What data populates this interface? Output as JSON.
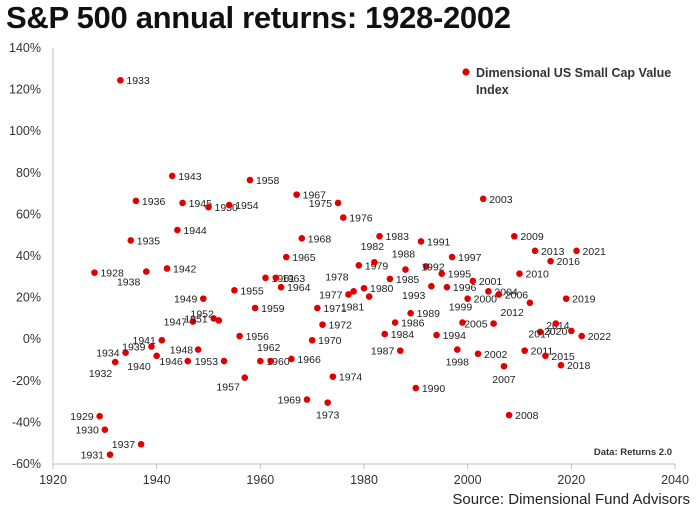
{
  "title": "S&P 500 annual returns: 1928-2002",
  "source": "Source: Dimensional Fund Advisors",
  "chart_data": {
    "type": "scatter",
    "title": "S&P 500 annual returns: 1928-2002",
    "xlim": [
      1920,
      2040
    ],
    "ylim": [
      -60,
      140
    ],
    "x_ticks": [
      "1920",
      "1940",
      "1960",
      "1980",
      "2000",
      "2020",
      "2040"
    ],
    "y_ticks": [
      "-60%",
      "-40%",
      "-20%",
      "0%",
      "20%",
      "40%",
      "60%",
      "80%",
      "100%",
      "120%",
      "140%"
    ],
    "grid": false,
    "legend": "top-right",
    "series": [
      {
        "name": "Dimensional US Small Cap Value Index",
        "color": "#e00000",
        "points": [
          {
            "label": "1928",
            "x": 1928,
            "y": 32
          },
          {
            "label": "1929",
            "x": 1929,
            "y": -37
          },
          {
            "label": "1930",
            "x": 1930,
            "y": -43.5
          },
          {
            "label": "1931",
            "x": 1931,
            "y": -55.5
          },
          {
            "label": "1932",
            "x": 1932,
            "y": -11
          },
          {
            "label": "1933",
            "x": 1933,
            "y": 124.5
          },
          {
            "label": "1934",
            "x": 1934,
            "y": -6.5
          },
          {
            "label": "1935",
            "x": 1935,
            "y": 47.5
          },
          {
            "label": "1936",
            "x": 1936,
            "y": 66.5
          },
          {
            "label": "1937",
            "x": 1937,
            "y": -50.5
          },
          {
            "label": "1938",
            "x": 1938,
            "y": 32.5
          },
          {
            "label": "1939",
            "x": 1939,
            "y": -3.5
          },
          {
            "label": "1940",
            "x": 1940,
            "y": -8
          },
          {
            "label": "1941",
            "x": 1941,
            "y": -0.5
          },
          {
            "label": "1942",
            "x": 1942,
            "y": 34
          },
          {
            "label": "1943",
            "x": 1943,
            "y": 78.5
          },
          {
            "label": "1944",
            "x": 1944,
            "y": 52.5
          },
          {
            "label": "1945",
            "x": 1945,
            "y": 65.5
          },
          {
            "label": "1946",
            "x": 1946,
            "y": -10.5
          },
          {
            "label": "1947",
            "x": 1947,
            "y": 8.5
          },
          {
            "label": "1948",
            "x": 1948,
            "y": -5
          },
          {
            "label": "1949",
            "x": 1949,
            "y": 19.5
          },
          {
            "label": "1950",
            "x": 1950,
            "y": 63.5
          },
          {
            "label": "1951",
            "x": 1951,
            "y": 10
          },
          {
            "label": "1952",
            "x": 1952,
            "y": 9
          },
          {
            "label": "1953",
            "x": 1953,
            "y": -10.5
          },
          {
            "label": "1954",
            "x": 1954,
            "y": 64.5
          },
          {
            "label": "1955",
            "x": 1955,
            "y": 23.5
          },
          {
            "label": "1956",
            "x": 1956,
            "y": 1.5
          },
          {
            "label": "1957",
            "x": 1957,
            "y": -18.5
          },
          {
            "label": "1958",
            "x": 1958,
            "y": 76.5
          },
          {
            "label": "1959",
            "x": 1959,
            "y": 15
          },
          {
            "label": "1960",
            "x": 1960,
            "y": -10.5
          },
          {
            "label": "1961",
            "x": 1961,
            "y": 29.5
          },
          {
            "label": "1962",
            "x": 1962,
            "y": -10.5
          },
          {
            "label": "1963",
            "x": 1963,
            "y": 29.5
          },
          {
            "label": "1964",
            "x": 1964,
            "y": 25
          },
          {
            "label": "1965",
            "x": 1965,
            "y": 39.5
          },
          {
            "label": "1966",
            "x": 1966,
            "y": -9.5
          },
          {
            "label": "1967",
            "x": 1967,
            "y": 69.5
          },
          {
            "label": "1968",
            "x": 1968,
            "y": 48.5
          },
          {
            "label": "1969",
            "x": 1969,
            "y": -29
          },
          {
            "label": "1970",
            "x": 1970,
            "y": -0.5
          },
          {
            "label": "1971",
            "x": 1971,
            "y": 15
          },
          {
            "label": "1972",
            "x": 1972,
            "y": 7
          },
          {
            "label": "1973",
            "x": 1973,
            "y": -30.5
          },
          {
            "label": "1974",
            "x": 1974,
            "y": -18
          },
          {
            "label": "1975",
            "x": 1975,
            "y": 65.5
          },
          {
            "label": "1976",
            "x": 1976,
            "y": 58.5
          },
          {
            "label": "1977",
            "x": 1977,
            "y": 21.5
          },
          {
            "label": "1978",
            "x": 1978,
            "y": 23
          },
          {
            "label": "1979",
            "x": 1979,
            "y": 35.5
          },
          {
            "label": "1980",
            "x": 1980,
            "y": 24.5
          },
          {
            "label": "1981",
            "x": 1981,
            "y": 20.5
          },
          {
            "label": "1982",
            "x": 1982,
            "y": 37
          },
          {
            "label": "1983",
            "x": 1983,
            "y": 49.5
          },
          {
            "label": "1984",
            "x": 1984,
            "y": 2.5
          },
          {
            "label": "1985",
            "x": 1985,
            "y": 29
          },
          {
            "label": "1986",
            "x": 1986,
            "y": 8
          },
          {
            "label": "1987",
            "x": 1987,
            "y": -5.5
          },
          {
            "label": "1988",
            "x": 1988,
            "y": 33.5
          },
          {
            "label": "1989",
            "x": 1989,
            "y": 12.5
          },
          {
            "label": "1990",
            "x": 1990,
            "y": -23.5
          },
          {
            "label": "1991",
            "x": 1991,
            "y": 47
          },
          {
            "label": "1992",
            "x": 1992,
            "y": 35
          },
          {
            "label": "1993",
            "x": 1993,
            "y": 25.5
          },
          {
            "label": "1994",
            "x": 1994,
            "y": 2
          },
          {
            "label": "1995",
            "x": 1995,
            "y": 31.5
          },
          {
            "label": "1996",
            "x": 1996,
            "y": 25
          },
          {
            "label": "1997",
            "x": 1997,
            "y": 39.5
          },
          {
            "label": "1998",
            "x": 1998,
            "y": -5
          },
          {
            "label": "1999",
            "x": 1999,
            "y": 8
          },
          {
            "label": "2000",
            "x": 2000,
            "y": 19.5
          },
          {
            "label": "2001",
            "x": 2001,
            "y": 28
          },
          {
            "label": "2002",
            "x": 2002,
            "y": -7
          },
          {
            "label": "2003",
            "x": 2003,
            "y": 67.5
          },
          {
            "label": "2004",
            "x": 2004,
            "y": 23
          },
          {
            "label": "2005",
            "x": 2005,
            "y": 7.5
          },
          {
            "label": "2006",
            "x": 2006,
            "y": 21.5
          },
          {
            "label": "2007",
            "x": 2007,
            "y": -13
          },
          {
            "label": "2008",
            "x": 2008,
            "y": -36.5
          },
          {
            "label": "2009",
            "x": 2009,
            "y": 49.5
          },
          {
            "label": "2010",
            "x": 2010,
            "y": 31.5
          },
          {
            "label": "2011",
            "x": 2011,
            "y": -5.5
          },
          {
            "label": "2012",
            "x": 2012,
            "y": 17.5
          },
          {
            "label": "2013",
            "x": 2013,
            "y": 42.5
          },
          {
            "label": "2014",
            "x": 2014,
            "y": 3.5
          },
          {
            "label": "2015",
            "x": 2015,
            "y": -8
          },
          {
            "label": "2016",
            "x": 2016,
            "y": 37.5
          },
          {
            "label": "2017",
            "x": 2017,
            "y": 7.5
          },
          {
            "label": "2018",
            "x": 2018,
            "y": -12.5
          },
          {
            "label": "2019",
            "x": 2019,
            "y": 19.5
          },
          {
            "label": "2020",
            "x": 2020,
            "y": 4
          },
          {
            "label": "2021",
            "x": 2021,
            "y": 42.5
          },
          {
            "label": "2022",
            "x": 2022,
            "y": 1.5
          }
        ]
      }
    ],
    "annotation": "Data: Returns 2.0"
  }
}
